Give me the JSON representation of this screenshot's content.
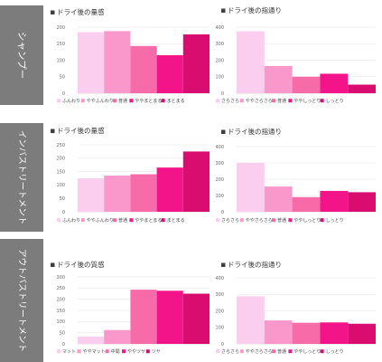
{
  "side_labels": [
    "シャンプー",
    "インバストリートメント",
    "アウトバストリートメント"
  ],
  "colors": [
    "#fbcdee",
    "#fa98cc",
    "#f86ba9",
    "#f4148a",
    "#d90c6f"
  ],
  "chart_data": [
    {
      "type": "bar",
      "title": "ドライ後の量感",
      "categories": [
        "ふんわり",
        "ややふんわり",
        "普通",
        "ややまとまる",
        "まとまる"
      ],
      "values": [
        185,
        188,
        143,
        115,
        178
      ],
      "ylim": [
        0,
        200
      ],
      "yticks": [
        0,
        50,
        100,
        150,
        200
      ],
      "grid": true,
      "legend": "bottom"
    },
    {
      "type": "bar",
      "title": "ドライ後の指通り",
      "categories": [
        "さらさら",
        "ややさらさら",
        "普通",
        "ややしっとり",
        "しっとり"
      ],
      "values": [
        375,
        165,
        100,
        118,
        52
      ],
      "ylim": [
        0,
        400
      ],
      "yticks": [
        0,
        100,
        200,
        300,
        400
      ],
      "grid": true,
      "legend": "bottom"
    },
    {
      "type": "bar",
      "title": "ドライ後の量感",
      "categories": [
        "ふんわり",
        "ややふんわり",
        "普通",
        "ややまとまる",
        "まとまる"
      ],
      "values": [
        125,
        135,
        140,
        165,
        225
      ],
      "ylim": [
        0,
        250
      ],
      "yticks": [
        0,
        50,
        100,
        150,
        200,
        250
      ],
      "grid": true,
      "legend": "bottom"
    },
    {
      "type": "bar",
      "title": "ドライ後の指通り",
      "categories": [
        "さらさら",
        "ややさらさら",
        "普通",
        "ややしっとり",
        "しっとり"
      ],
      "values": [
        300,
        155,
        90,
        128,
        120
      ],
      "ylim": [
        0,
        400
      ],
      "yticks": [
        0,
        100,
        200,
        300,
        400
      ],
      "grid": true,
      "legend": "bottom"
    },
    {
      "type": "bar",
      "title": "ドライ後の質感",
      "categories": [
        "マット",
        "ややマット",
        "中間",
        "ややツヤ",
        "ツヤ"
      ],
      "values": [
        33,
        62,
        243,
        238,
        225
      ],
      "ylim": [
        0,
        300
      ],
      "yticks": [
        0,
        50,
        100,
        150,
        200,
        250,
        300
      ],
      "grid": true,
      "legend": "bottom"
    },
    {
      "type": "bar",
      "title": "ドライ後の指通り",
      "categories": [
        "さらさら",
        "ややさらさら",
        "普通",
        "ややしっとり",
        "しっとり"
      ],
      "values": [
        288,
        142,
        128,
        130,
        122
      ],
      "ylim": [
        0,
        400
      ],
      "yticks": [
        0,
        100,
        200,
        300,
        400
      ],
      "grid": true,
      "legend": "bottom"
    }
  ]
}
